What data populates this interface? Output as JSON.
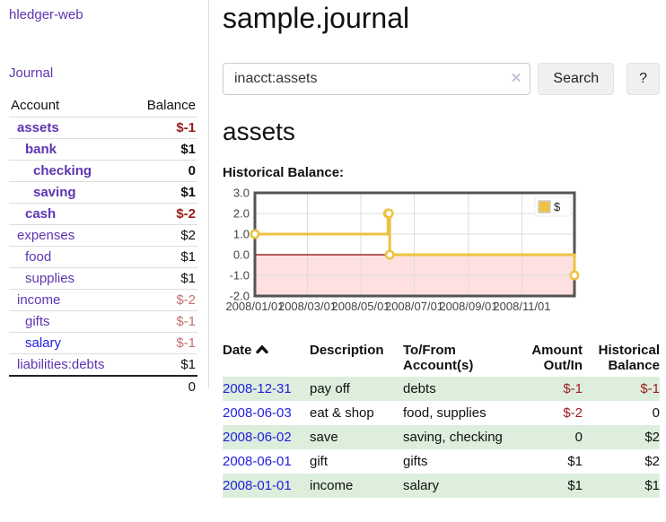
{
  "colors": {
    "link_purple": "#5E35B1",
    "link_blue": "#2121DE",
    "negative_dark": "#9C1A1A",
    "negative_light": "#C46F6F",
    "row_green": "#DDEEDD",
    "chart_gold": "#EDC240",
    "chart_border": "#545454",
    "chart_grid": "#DCDCDC",
    "chart_negative_fill": "rgba(255,0,0,0.12)",
    "chart_zero_line": "#8B0000",
    "button_bg": "#F0F0F0"
  },
  "brand": {
    "label": "hledger-web"
  },
  "sidebar": {
    "journal_link": "Journal",
    "accounts_table": {
      "headers": {
        "account": "Account",
        "balance": "Balance"
      },
      "rows": [
        {
          "account": "assets",
          "balance": "$-1",
          "indent": 1,
          "bold": true,
          "balance_class": "neg-dark"
        },
        {
          "account": "bank",
          "balance": "$1",
          "indent": 2,
          "bold": true,
          "balance_class": ""
        },
        {
          "account": "checking",
          "balance": "0",
          "indent": 3,
          "bold": true,
          "balance_class": ""
        },
        {
          "account": "saving",
          "balance": "$1",
          "indent": 3,
          "bold": true,
          "balance_class": ""
        },
        {
          "account": "cash",
          "balance": "$-2",
          "indent": 2,
          "bold": true,
          "balance_class": "neg-dark"
        },
        {
          "account": "expenses",
          "balance": "$2",
          "indent": 1,
          "bold": false,
          "balance_class": ""
        },
        {
          "account": "food",
          "balance": "$1",
          "indent": 2,
          "bold": false,
          "balance_class": ""
        },
        {
          "account": "supplies",
          "balance": "$1",
          "indent": 2,
          "bold": false,
          "balance_class": ""
        },
        {
          "account": "income",
          "balance": "$-2",
          "indent": 1,
          "bold": false,
          "balance_class": "neg-light"
        },
        {
          "account": "gifts",
          "balance": "$-1",
          "indent": 2,
          "bold": false,
          "balance_class": "neg-light"
        },
        {
          "account": "salary",
          "balance": "$-1",
          "indent": 2,
          "bold": false,
          "balance_class": "neg-light",
          "link_class": "blue"
        },
        {
          "account": "liabilities:debts",
          "balance": "$1",
          "indent": 1,
          "bold": false,
          "balance_class": ""
        }
      ],
      "total": "0"
    }
  },
  "main": {
    "title": "sample.journal",
    "search": {
      "value": "inacct:assets",
      "clear_icon": "✕",
      "search_button": "Search",
      "help_button": "?"
    },
    "account_heading": "assets",
    "chart_title": "Historical Balance:"
  },
  "chart_data": {
    "type": "line",
    "title": "Historical Balance:",
    "style": "steps-with-markers",
    "series": [
      {
        "name": "$",
        "color": "#EDC240",
        "points": [
          [
            "2008-01-01",
            1
          ],
          [
            "2008-06-01",
            2
          ],
          [
            "2008-06-02",
            2
          ],
          [
            "2008-06-03",
            0
          ],
          [
            "2008-12-31",
            -1
          ]
        ]
      }
    ],
    "x_range": [
      "2008-01-01",
      "2008-12-31"
    ],
    "x_ticks": [
      "2008/01/01",
      "2008/03/01",
      "2008/05/01",
      "2008/07/01",
      "2008/09/01",
      "2008/11/01"
    ],
    "ylim": [
      -2,
      3
    ],
    "y_ticks": [
      -2.0,
      -1.0,
      0.0,
      1.0,
      2.0,
      3.0
    ],
    "grid": true,
    "legend_position": "top-right",
    "negative_region_shaded": true
  },
  "register": {
    "headers": {
      "date": "Date",
      "description": "Description",
      "tofrom": "To/From Account(s)",
      "amount": "Amount Out/In",
      "balance": "Historical Balance"
    },
    "rows": [
      {
        "date": "2008-12-31",
        "description": "pay off",
        "tofrom": "debts",
        "amount": "$-1",
        "amount_class": "neg-dark",
        "balance": "$-1",
        "balance_class": "neg-dark",
        "shaded": true
      },
      {
        "date": "2008-06-03",
        "description": "eat & shop",
        "tofrom": "food, supplies",
        "amount": "$-2",
        "amount_class": "neg-dark",
        "balance": "0",
        "balance_class": "",
        "shaded": false
      },
      {
        "date": "2008-06-02",
        "description": "save",
        "tofrom": "saving, checking",
        "amount": "0",
        "amount_class": "",
        "balance": "$2",
        "balance_class": "",
        "shaded": true
      },
      {
        "date": "2008-06-01",
        "description": "gift",
        "tofrom": "gifts",
        "amount": "$1",
        "amount_class": "",
        "balance": "$2",
        "balance_class": "",
        "shaded": false
      },
      {
        "date": "2008-01-01",
        "description": "income",
        "tofrom": "salary",
        "amount": "$1",
        "amount_class": "",
        "balance": "$1",
        "balance_class": "",
        "shaded": true
      }
    ]
  }
}
